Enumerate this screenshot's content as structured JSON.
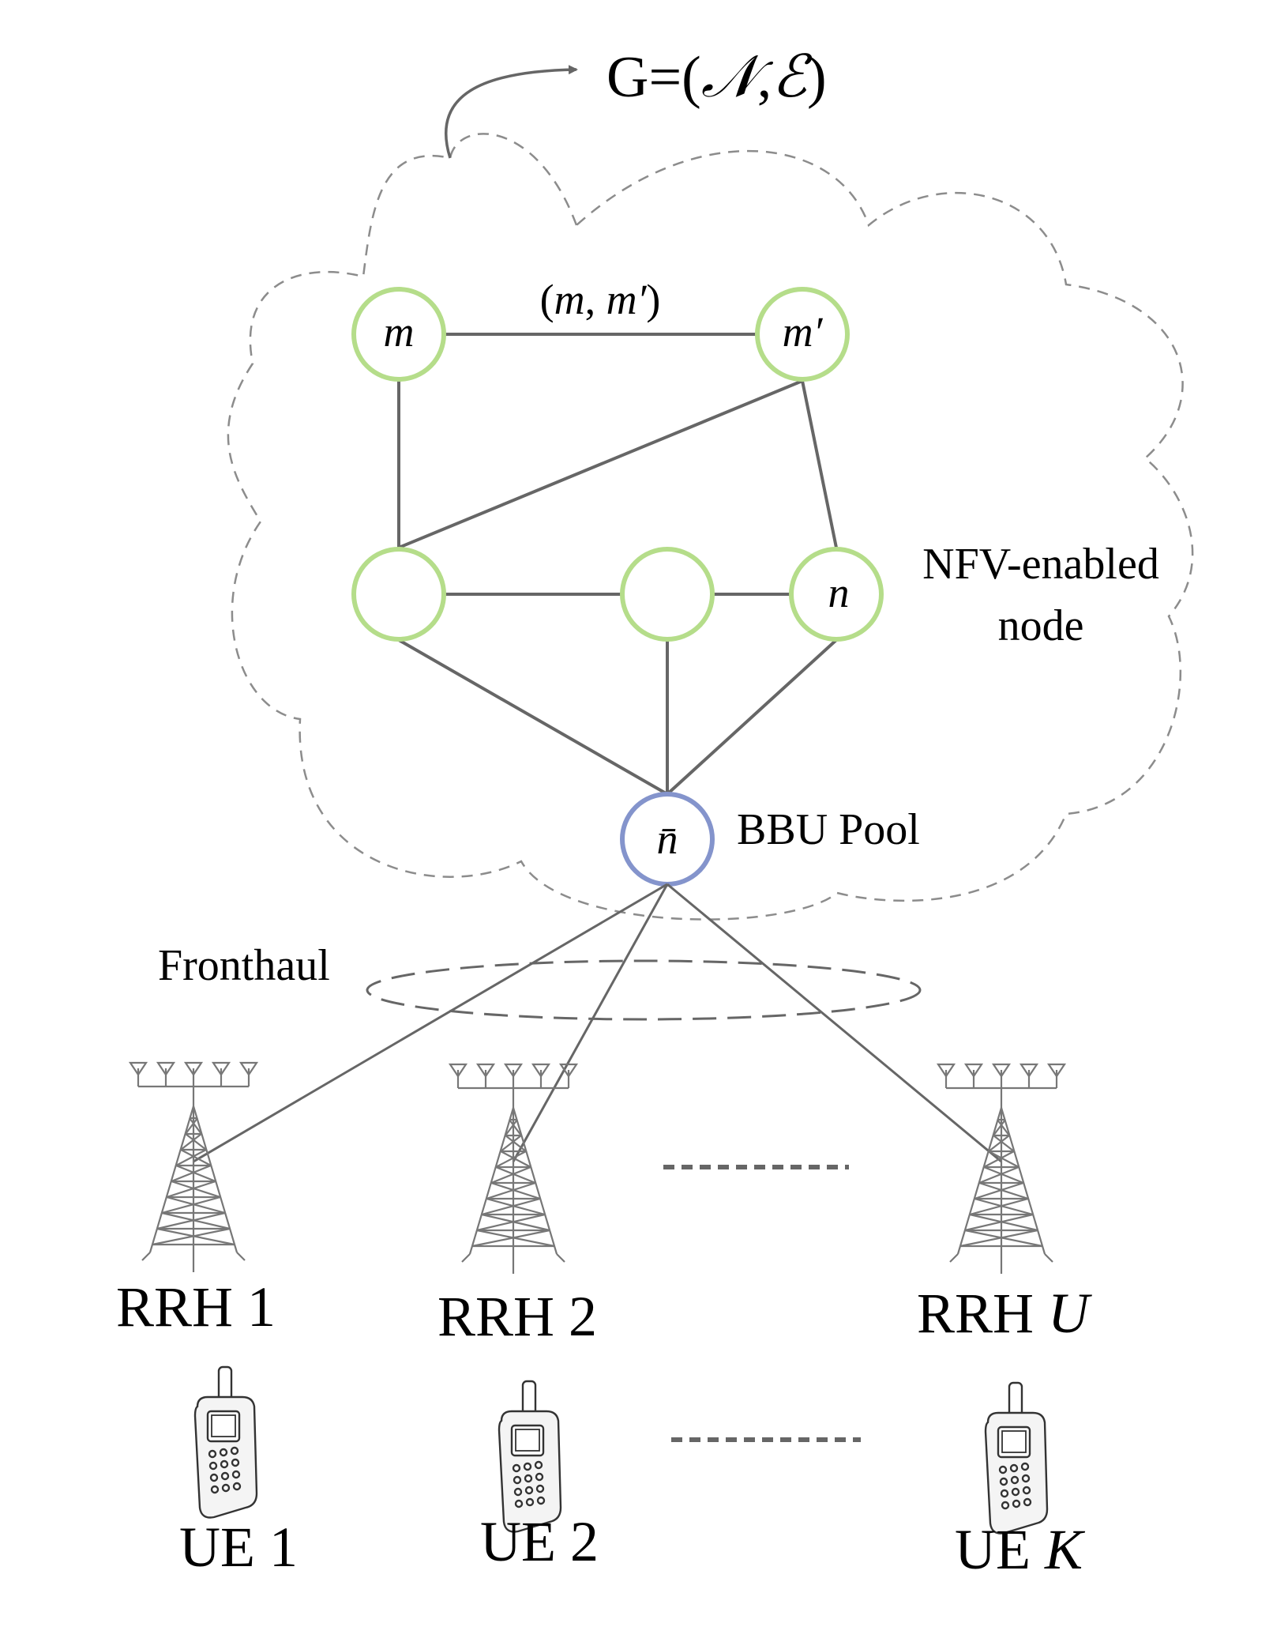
{
  "graph_label": {
    "prefix": "G=(",
    "nodes_symbol": "𝒩",
    "comma": ",",
    "edges_symbol": "ℰ",
    "suffix": ")"
  },
  "cloud": {
    "style": "dashed"
  },
  "nodes": {
    "m": {
      "label": "m"
    },
    "m_prime": {
      "label": "m′"
    },
    "left": {
      "label": ""
    },
    "middle": {
      "label": ""
    },
    "n": {
      "label": "n"
    },
    "bbu": {
      "label": "n̄"
    }
  },
  "edge_label": {
    "open": "(",
    "m": "m",
    "sep": ", ",
    "m_prime": "m′",
    "close": ")"
  },
  "nfv_label": {
    "line1": "NFV-enabled",
    "line2": "node"
  },
  "bbu_label": "BBU Pool",
  "fronthaul_label": "Fronthaul",
  "rrhs": [
    {
      "prefix": "RRH ",
      "index": "1"
    },
    {
      "prefix": "RRH ",
      "index": "2"
    },
    {
      "prefix": "RRH ",
      "index": "U"
    }
  ],
  "ues": [
    {
      "prefix": "UE ",
      "index": "1"
    },
    {
      "prefix": "UE ",
      "index": "2"
    },
    {
      "prefix": "UE ",
      "index": "K"
    }
  ],
  "colors": {
    "nfv_node_stroke": "#b5dd8a",
    "bbu_stroke": "#8494cc",
    "link": "#666666",
    "cloud": "#8c8c8c",
    "ink": "#000000"
  }
}
